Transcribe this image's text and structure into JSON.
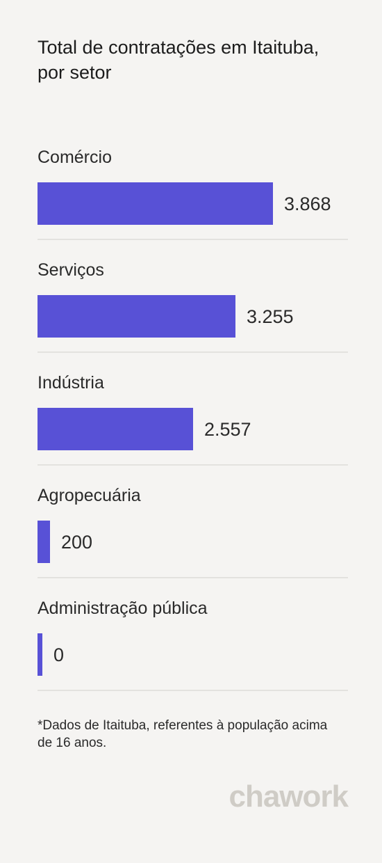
{
  "chart_data": {
    "type": "bar",
    "orientation": "horizontal",
    "title": "Total de contratações em Itaituba, por setor",
    "categories": [
      "Comércio",
      "Serviços",
      "Indústria",
      "Agropecuária",
      "Administração pública"
    ],
    "values": [
      3868,
      3255,
      2557,
      200,
      0
    ],
    "value_labels": [
      "3.868",
      "3.255",
      "2.557",
      "200",
      "0"
    ],
    "xlim": [
      0,
      5100
    ],
    "bar_color": "#5851d6",
    "grid": false,
    "legend": "none"
  },
  "footnote": "*Dados de Itaituba, referentes à população acima de 16 anos.",
  "brand": "chawork"
}
